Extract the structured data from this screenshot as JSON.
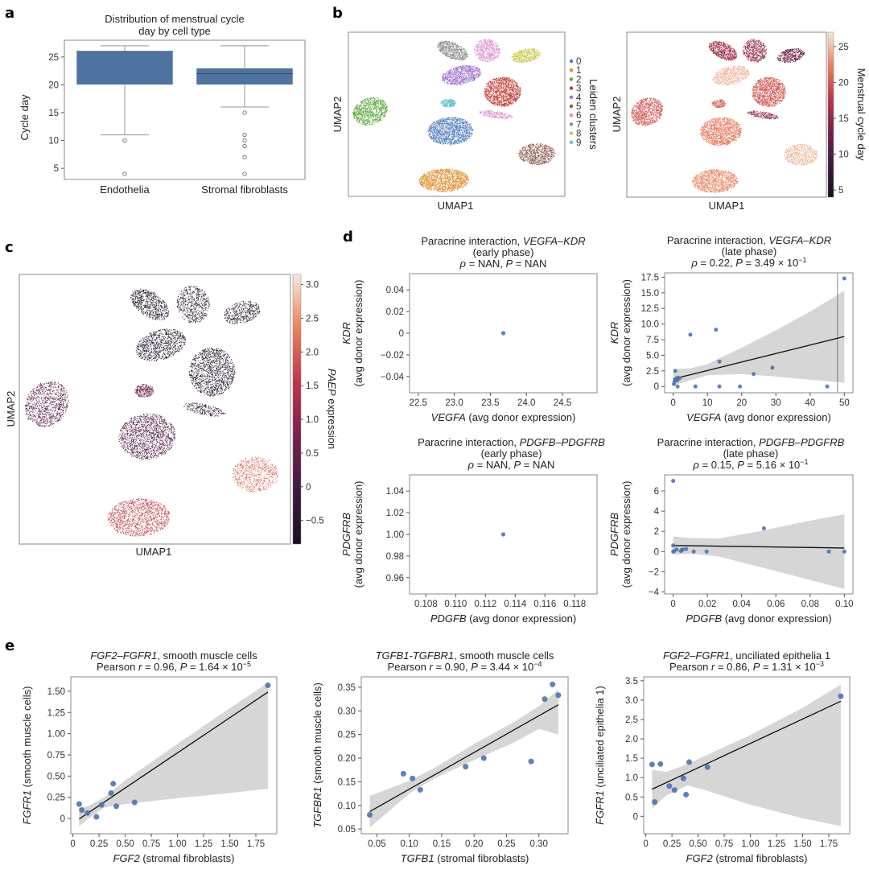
{
  "panels": {
    "a": {
      "letter": "a"
    },
    "b": {
      "letter": "b"
    },
    "c": {
      "letter": "c"
    },
    "d": {
      "letter": "d"
    },
    "e": {
      "letter": "e"
    }
  },
  "chart_data": [
    {
      "id": "a",
      "type": "box",
      "title": "Distribution of menstrual cycle day by cell type",
      "title_lines": [
        "Distribution of menstrual cycle",
        "day by cell type"
      ],
      "xlabel": "",
      "ylabel": "Cycle day",
      "ylim": [
        3,
        28
      ],
      "yticks": [
        5,
        10,
        15,
        20,
        25
      ],
      "categories": [
        "Endothelia",
        "Stromal fibroblasts"
      ],
      "boxes": [
        {
          "name": "Endothelia",
          "whisker_low": 11,
          "q1": 20,
          "median": 26,
          "q3": 26,
          "whisker_high": 27,
          "outliers": [
            10,
            4
          ]
        },
        {
          "name": "Stromal fibroblasts",
          "whisker_low": 16,
          "q1": 20,
          "median": 22,
          "q3": 23,
          "whisker_high": 27,
          "outliers": [
            15,
            11,
            10,
            9,
            7,
            4
          ]
        }
      ],
      "color": "#4e73a0"
    },
    {
      "id": "b-left",
      "type": "scatter",
      "subtype": "umap",
      "xlabel": "UMAP1",
      "ylabel": "UMAP2",
      "legend_title": "Leiden clusters",
      "legend_position": "right",
      "legend": [
        {
          "label": "0",
          "color": "#4e7bc0"
        },
        {
          "label": "1",
          "color": "#e08b2a"
        },
        {
          "label": "2",
          "color": "#5aa83a"
        },
        {
          "label": "3",
          "color": "#c43a35"
        },
        {
          "label": "4",
          "color": "#9a6ccc"
        },
        {
          "label": "5",
          "color": "#8c5a4e"
        },
        {
          "label": "6",
          "color": "#dc8bd0"
        },
        {
          "label": "7",
          "color": "#8a8a8a"
        },
        {
          "label": "8",
          "color": "#c4c43a"
        },
        {
          "label": "9",
          "color": "#5cc0d4"
        }
      ],
      "clusters": [
        {
          "label": "0",
          "cx": 0.47,
          "cy": 0.4,
          "rx": 0.08,
          "ry": 0.07
        },
        {
          "label": "1",
          "cx": 0.44,
          "cy": 0.1,
          "rx": 0.09,
          "ry": 0.06
        },
        {
          "label": "2",
          "cx": 0.1,
          "cy": 0.5,
          "rx": 0.06,
          "ry": 0.08
        },
        {
          "label": "3",
          "cx": 0.72,
          "cy": 0.64,
          "rx": 0.07,
          "ry": 0.08
        },
        {
          "label": "4",
          "cx": 0.53,
          "cy": 0.72,
          "rx": 0.07,
          "ry": 0.05
        },
        {
          "label": "5",
          "cx": 0.87,
          "cy": 0.27,
          "rx": 0.07,
          "ry": 0.06
        },
        {
          "label": "6",
          "cx": 0.66,
          "cy": 0.88,
          "rx": 0.05,
          "ry": 0.06
        },
        {
          "label": "7",
          "cx": 0.5,
          "cy": 0.88,
          "rx": 0.05,
          "ry": 0.06
        },
        {
          "label": "8",
          "cx": 0.82,
          "cy": 0.85,
          "rx": 0.06,
          "ry": 0.04
        },
        {
          "label": "9",
          "cx": 0.49,
          "cy": 0.54,
          "rx": 0.03,
          "ry": 0.02
        }
      ]
    },
    {
      "id": "b-right",
      "type": "scatter",
      "subtype": "umap",
      "xlabel": "UMAP1",
      "ylabel": "UMAP2",
      "colorbar_label": "Menstrual cycle day",
      "colorbar_range": [
        4,
        27
      ],
      "colorbar_ticks": [
        5,
        10,
        15,
        20,
        25
      ],
      "cluster_values": [
        22,
        23,
        20,
        20,
        25,
        25,
        15,
        16,
        12,
        21
      ]
    },
    {
      "id": "c",
      "type": "scatter",
      "subtype": "umap",
      "xlabel": "UMAP1",
      "ylabel": "UMAP2",
      "colorbar_label": "PAEP expression",
      "colorbar_label_italic": "PAEP",
      "colorbar_label_rest": " expression",
      "colorbar_range": [
        -0.85,
        3.15
      ],
      "colorbar_ticks": [
        -0.5,
        0,
        0.5,
        1.0,
        1.5,
        2.0,
        2.5,
        3.0
      ],
      "colorbar_ticklabels": [
        "−0.5",
        "0",
        "0.5",
        "1.0",
        "1.5",
        "2.0",
        "2.5",
        "3.0"
      ],
      "cluster_values": [
        0.2,
        1.7,
        0.3,
        -0.6,
        -0.6,
        2.2,
        -0.5,
        -0.6,
        -0.6,
        0.5
      ]
    },
    {
      "id": "d-early-vegfa",
      "type": "scatter",
      "title_lines": [
        "Paracrine interaction, |VEGFA–KDR|",
        "(early phase)",
        "|ρ| = NAN, |P| = NAN"
      ],
      "xlabel_italic": "VEGFA",
      "xlabel_rest": " (avg donor expression)",
      "ylabel_italic": "KDR",
      "ylabel_rest": "(avg donor expression)",
      "xlim": [
        22.38,
        24.98
      ],
      "ylim": [
        -0.055,
        0.055
      ],
      "xticks": [
        22.5,
        23.0,
        23.5,
        24.0,
        24.5
      ],
      "xticklabels": [
        "22.5",
        "23.0",
        "23.5",
        "24.0",
        "24.5"
      ],
      "yticks": [
        -0.04,
        -0.02,
        0,
        0.02,
        0.04
      ],
      "yticklabels": [
        "−0.04",
        "−0.02",
        "0",
        "0.02",
        "0.04"
      ],
      "points": [
        [
          23.68,
          0
        ]
      ],
      "fit": null
    },
    {
      "id": "d-late-vegfa",
      "type": "scatter",
      "title_lines": [
        "Paracrine interaction, |VEGFA–KDR|",
        "(late phase)",
        "|ρ| = 0.22, |P| = 3.49 × 10^−1"
      ],
      "xlabel_italic": "VEGFA",
      "xlabel_rest": " (avg donor expression)",
      "ylabel_italic": "KDR",
      "ylabel_rest": "(avg donor expression)",
      "xlim": [
        -2.5,
        52.5
      ],
      "ylim": [
        -1.0,
        18.2
      ],
      "xticks": [
        0,
        10,
        20,
        30,
        40,
        50
      ],
      "xticklabels": [
        "0",
        "10",
        "20",
        "30",
        "40",
        "50"
      ],
      "yticks": [
        0,
        2.5,
        5.0,
        7.5,
        10.0,
        12.5,
        15.0,
        17.5
      ],
      "yticklabels": [
        "0",
        "2.5",
        "5.0",
        "7.5",
        "10.0",
        "12.5",
        "15.0",
        "17.5"
      ],
      "points": [
        [
          0.2,
          0.4
        ],
        [
          0.4,
          0.8
        ],
        [
          0.6,
          2.5
        ],
        [
          0.8,
          1.1
        ],
        [
          1.0,
          1.3
        ],
        [
          1.2,
          1.0
        ],
        [
          1.4,
          1.4
        ],
        [
          1.8,
          1.3
        ],
        [
          1.3,
          0
        ],
        [
          6.5,
          0
        ],
        [
          5.0,
          8.3
        ],
        [
          12.5,
          9.1
        ],
        [
          13.5,
          4.0
        ],
        [
          13.5,
          0
        ],
        [
          19.5,
          0
        ],
        [
          23.5,
          2.0
        ],
        [
          29.0,
          3.0
        ],
        [
          45.0,
          0
        ],
        [
          50.0,
          17.3
        ]
      ],
      "fit": {
        "x0": 0,
        "y0": 1.2,
        "x1": 50,
        "y1": 8.0
      },
      "ci_upper": [
        [
          0,
          2.8
        ],
        [
          5,
          2.9
        ],
        [
          10,
          3.6
        ],
        [
          20,
          6.2
        ],
        [
          30,
          9.0
        ],
        [
          40,
          12.0
        ],
        [
          50,
          15.3
        ]
      ],
      "ci_lower": [
        [
          0,
          0.2
        ],
        [
          5,
          1.0
        ],
        [
          10,
          1.8
        ],
        [
          20,
          2.0
        ],
        [
          30,
          1.6
        ],
        [
          40,
          1.1
        ],
        [
          50,
          0.6
        ]
      ],
      "vline": 48
    },
    {
      "id": "d-early-pdgfb",
      "type": "scatter",
      "title_lines": [
        "Paracrine interaction, |PDGFB–PDGFRB|",
        "(early phase)",
        "|ρ| = NAN, |P| = NAN"
      ],
      "xlabel_italic": "PDGFB",
      "xlabel_rest": " (avg donor expression)",
      "ylabel_italic": "PDGFRB",
      "ylabel_rest": "(avg donor expression)",
      "xlim": [
        0.1069,
        0.1195
      ],
      "ylim": [
        0.945,
        1.055
      ],
      "xticks": [
        0.108,
        0.11,
        0.112,
        0.114,
        0.116,
        0.118
      ],
      "xticklabels": [
        "0.108",
        "0.110",
        "0.112",
        "0.114",
        "0.116",
        "0.118"
      ],
      "yticks": [
        0.96,
        0.98,
        1.0,
        1.02,
        1.04
      ],
      "yticklabels": [
        "0.96",
        "0.98",
        "1.00",
        "1.02",
        "1.04"
      ],
      "points": [
        [
          0.1132,
          1.0
        ]
      ],
      "fit": null
    },
    {
      "id": "d-late-pdgfb",
      "type": "scatter",
      "title_lines": [
        "Paracrine interaction, |PDGFB–PDGFRB|",
        "(late phase)",
        "|ρ| = 0.15, |P| = 5.16 × 10^−1"
      ],
      "xlabel_italic": "PDGFB",
      "xlabel_rest": " (avg donor expression)",
      "ylabel_italic": "PDGFRB",
      "ylabel_rest": "(avg donor expression)",
      "xlim": [
        -0.005,
        0.105
      ],
      "ylim": [
        -4.2,
        7.6
      ],
      "xticks": [
        0,
        0.02,
        0.04,
        0.06,
        0.08,
        0.1
      ],
      "xticklabels": [
        "0",
        "0.02",
        "0.04",
        "0.06",
        "0.08",
        "0.10"
      ],
      "yticks": [
        -4,
        -2,
        0,
        2,
        4,
        6
      ],
      "yticklabels": [
        "−4",
        "−2",
        "0",
        "2",
        "4",
        "6"
      ],
      "points": [
        [
          0,
          7.0
        ],
        [
          0,
          0.6
        ],
        [
          0,
          0
        ],
        [
          0.0005,
          0.05
        ],
        [
          0.002,
          0.2
        ],
        [
          0.0045,
          0.05
        ],
        [
          0.005,
          0.15
        ],
        [
          0.0055,
          0.2
        ],
        [
          0.0075,
          0.25
        ],
        [
          0.012,
          0
        ],
        [
          0.0195,
          0
        ],
        [
          0.053,
          2.3
        ],
        [
          0.091,
          0
        ],
        [
          0.1,
          0
        ]
      ],
      "fit": {
        "x0": 0,
        "y0": 0.6,
        "x1": 0.1,
        "y1": 0.35
      },
      "ci_upper": [
        [
          0,
          1.5
        ],
        [
          0.01,
          1.35
        ],
        [
          0.027,
          1.3
        ],
        [
          0.05,
          2.0
        ],
        [
          0.075,
          2.9
        ],
        [
          0.1,
          3.7
        ]
      ],
      "ci_lower": [
        [
          0,
          -0.3
        ],
        [
          0.01,
          -0.2
        ],
        [
          0.027,
          -0.5
        ],
        [
          0.05,
          -1.5
        ],
        [
          0.075,
          -2.6
        ],
        [
          0.1,
          -3.7
        ]
      ]
    },
    {
      "id": "e-fgf2-smc",
      "type": "scatter",
      "title_lines": [
        "|FGF2–FGFR1|, smooth muscle cells",
        "Pearson |r| = 0.96, |P| = 1.64 × 10^−5"
      ],
      "xlabel_italic": "FGF2",
      "xlabel_rest": " (stromal fibroblasts)",
      "ylabel_italic": "FGFR1",
      "ylabel_rest": " (smooth muscle cells)",
      "xlim": [
        -0.02,
        1.95
      ],
      "ylim": [
        -0.18,
        1.67
      ],
      "xticks": [
        0,
        0.25,
        0.5,
        0.75,
        1.0,
        1.25,
        1.5,
        1.75
      ],
      "xticklabels": [
        "0",
        "0.25",
        "0.50",
        "0.75",
        "1.00",
        "1.25",
        "1.50",
        "1.75"
      ],
      "yticks": [
        0,
        0.25,
        0.5,
        0.75,
        1.0,
        1.25,
        1.5
      ],
      "yticklabels": [
        "0",
        "0.25",
        "0.50",
        "0.75",
        "1.00",
        "1.25",
        "1.50"
      ],
      "points": [
        [
          0.06,
          0.17
        ],
        [
          0.085,
          0.1
        ],
        [
          0.14,
          0.065
        ],
        [
          0.225,
          0.02
        ],
        [
          0.275,
          0.16
        ],
        [
          0.365,
          0.3
        ],
        [
          0.385,
          0.41
        ],
        [
          0.415,
          0.145
        ],
        [
          0.59,
          0.19
        ],
        [
          1.865,
          1.57
        ]
      ],
      "fit": {
        "x0": 0.06,
        "y0": -0.005,
        "x1": 1.865,
        "y1": 1.49
      },
      "ci_upper": [
        [
          0.06,
          0.12
        ],
        [
          0.15,
          0.15
        ],
        [
          0.3,
          0.25
        ],
        [
          0.5,
          0.45
        ],
        [
          1.0,
          0.88
        ],
        [
          1.5,
          1.3
        ],
        [
          1.865,
          1.6
        ]
      ],
      "ci_lower": [
        [
          0.06,
          -0.09
        ],
        [
          0.15,
          0.0
        ],
        [
          0.3,
          0.13
        ],
        [
          0.5,
          0.17
        ],
        [
          1.0,
          0.24
        ],
        [
          1.5,
          0.3
        ],
        [
          1.865,
          0.35
        ]
      ]
    },
    {
      "id": "e-tgfb1-smc",
      "type": "scatter",
      "title_lines": [
        "|TGFB1-TGFBR1|, smooth muscle cells",
        "Pearson |r| = 0.90, |P| = 3.44 × 10^−4"
      ],
      "xlabel_italic": "TGFB1",
      "xlabel_rest": " (stromal fibroblasts)",
      "ylabel_italic": "TGFBR1",
      "ylabel_rest": " (smooth muscle cells)",
      "xlim": [
        0.026,
        0.345
      ],
      "ylim": [
        0.04,
        0.372
      ],
      "xticks": [
        0.05,
        0.1,
        0.15,
        0.2,
        0.25,
        0.3
      ],
      "xticklabels": [
        "0.05",
        "0.10",
        "0.15",
        "0.20",
        "0.25",
        "0.30"
      ],
      "yticks": [
        0.05,
        0.1,
        0.15,
        0.2,
        0.25,
        0.3,
        0.35
      ],
      "yticklabels": [
        "0.05",
        "0.10",
        "0.15",
        "0.20",
        "0.25",
        "0.30",
        "0.35"
      ],
      "points": [
        [
          0.039,
          0.08
        ],
        [
          0.091,
          0.167
        ],
        [
          0.105,
          0.157
        ],
        [
          0.117,
          0.133
        ],
        [
          0.187,
          0.182
        ],
        [
          0.215,
          0.2
        ],
        [
          0.288,
          0.193
        ],
        [
          0.309,
          0.325
        ],
        [
          0.321,
          0.356
        ],
        [
          0.33,
          0.333
        ]
      ],
      "fit": {
        "x0": 0.039,
        "y0": 0.087,
        "x1": 0.33,
        "y1": 0.313
      },
      "ci_upper": [
        [
          0.039,
          0.12
        ],
        [
          0.1,
          0.152
        ],
        [
          0.14,
          0.18
        ],
        [
          0.2,
          0.23
        ],
        [
          0.26,
          0.275
        ],
        [
          0.3,
          0.31
        ],
        [
          0.33,
          0.345
        ]
      ],
      "ci_lower": [
        [
          0.039,
          0.053
        ],
        [
          0.1,
          0.125
        ],
        [
          0.14,
          0.158
        ],
        [
          0.2,
          0.196
        ],
        [
          0.26,
          0.232
        ],
        [
          0.3,
          0.262
        ],
        [
          0.33,
          0.25
        ]
      ]
    },
    {
      "id": "e-fgf2-uce",
      "type": "scatter",
      "title_lines": [
        "|FGF2–FGFR1|, unciliated epithelia 1",
        "Pearson |r| = 0.86, |P| = 1.31 × 10^−3"
      ],
      "xlabel_italic": "FGF2",
      "xlabel_rest": " (stromal fibroblasts)",
      "ylabel_italic": "FGFR1",
      "ylabel_rest": " (unciliated epithelia 1)",
      "xlim": [
        -0.02,
        1.95
      ],
      "ylim": [
        -0.45,
        3.6
      ],
      "xticks": [
        0,
        0.25,
        0.5,
        0.75,
        1.0,
        1.25,
        1.5,
        1.75
      ],
      "xticklabels": [
        "0",
        "0.25",
        "0.50",
        "0.75",
        "1.00",
        "1.25",
        "1.50",
        "1.75"
      ],
      "yticks": [
        0,
        0.5,
        1.0,
        1.5,
        2.0,
        2.5,
        3.0,
        3.5
      ],
      "yticklabels": [
        "0",
        "0.5",
        "1.0",
        "1.5",
        "2.0",
        "2.5",
        "3.0",
        "3.5"
      ],
      "points": [
        [
          0.06,
          1.34
        ],
        [
          0.085,
          0.37
        ],
        [
          0.14,
          1.35
        ],
        [
          0.225,
          0.78
        ],
        [
          0.275,
          0.68
        ],
        [
          0.36,
          0.98
        ],
        [
          0.385,
          0.56
        ],
        [
          0.415,
          1.4
        ],
        [
          0.59,
          1.27
        ],
        [
          1.865,
          3.1
        ]
      ],
      "fit": {
        "x0": 0.06,
        "y0": 0.7,
        "x1": 1.865,
        "y1": 2.97
      },
      "ci_upper": [
        [
          0.06,
          1.2
        ],
        [
          0.2,
          1.15
        ],
        [
          0.4,
          1.35
        ],
        [
          0.6,
          1.6
        ],
        [
          1.0,
          2.1
        ],
        [
          1.5,
          2.8
        ],
        [
          1.865,
          3.4
        ]
      ],
      "ci_lower": [
        [
          0.06,
          0.2
        ],
        [
          0.2,
          0.55
        ],
        [
          0.4,
          0.8
        ],
        [
          0.6,
          0.65
        ],
        [
          1.0,
          0.3
        ],
        [
          1.5,
          -0.05
        ],
        [
          1.865,
          -0.25
        ]
      ]
    }
  ]
}
